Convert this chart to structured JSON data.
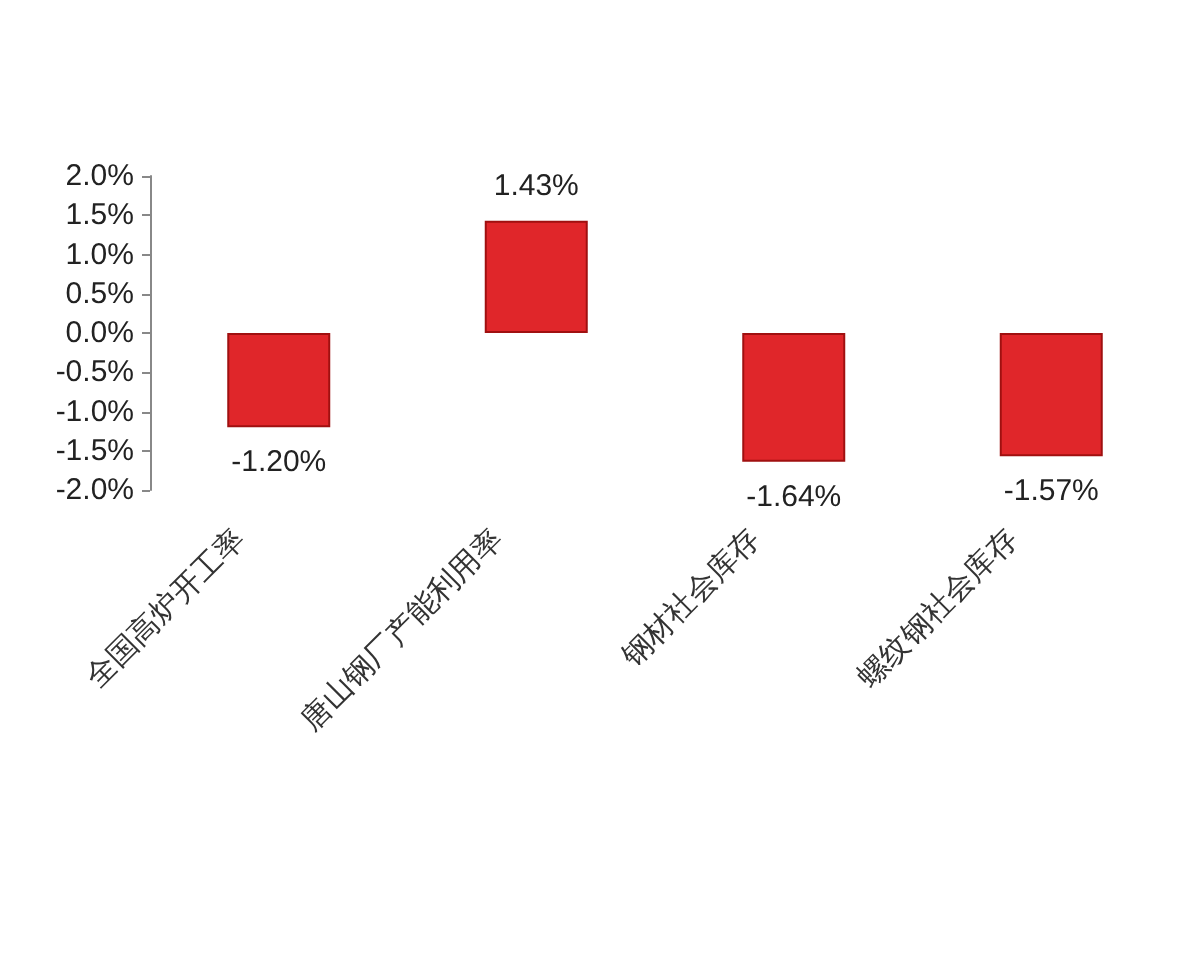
{
  "chart_data": {
    "type": "bar",
    "categories": [
      "全国高炉开工率",
      "唐山钢厂产能利用率",
      "钢材社会库存",
      "螺纹钢社会库存"
    ],
    "values": [
      -1.2,
      1.43,
      -1.64,
      -1.57
    ],
    "value_labels": [
      "-1.20%",
      "1.43%",
      "-1.64%",
      "-1.57%"
    ],
    "color": "#e0262a",
    "ylim": [
      -2,
      2
    ],
    "yticks": [
      {
        "value": 2,
        "label": "2.0%"
      },
      {
        "value": 1.5,
        "label": "1.5%"
      },
      {
        "value": 1,
        "label": "1.0%"
      },
      {
        "value": 0.5,
        "label": "0.5%"
      },
      {
        "value": 0,
        "label": "0.0%"
      },
      {
        "value": -0.5,
        "label": "-0.5%"
      },
      {
        "value": -1,
        "label": "-1.0%"
      },
      {
        "value": -1.5,
        "label": "-1.5%"
      },
      {
        "value": -2,
        "label": "-2.0%"
      }
    ],
    "grid": false
  }
}
